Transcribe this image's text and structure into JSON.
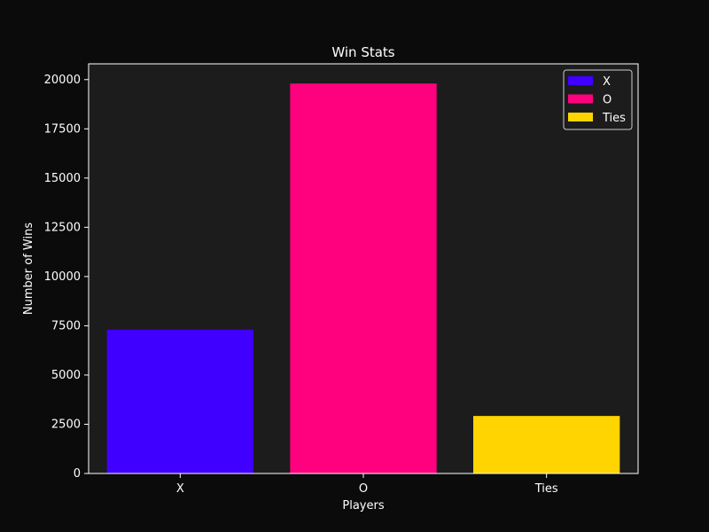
{
  "chart_data": {
    "type": "bar",
    "title": "Win Stats",
    "xlabel": "Players",
    "ylabel": "Number of Wins",
    "categories": [
      "X",
      "O",
      "Ties"
    ],
    "values": [
      7300,
      19800,
      2920
    ],
    "ylim": [
      0,
      20800
    ],
    "yticks": [
      0,
      2500,
      5000,
      7500,
      10000,
      12500,
      15000,
      17500,
      20000
    ],
    "ytick_labels": [
      "0",
      "2500",
      "5000",
      "7500",
      "10000",
      "12500",
      "15000",
      "17500",
      "20000"
    ],
    "colors": [
      "#4000ff",
      "#ff007f",
      "#ffd400"
    ],
    "legend": {
      "placement": "top-right",
      "entries": [
        "X",
        "O",
        "Ties"
      ]
    },
    "grid": false,
    "background": "#0b0b0b",
    "plot_background": "#1c1c1c",
    "axis_color": "#ffffff",
    "text_color": "#ffffff"
  }
}
